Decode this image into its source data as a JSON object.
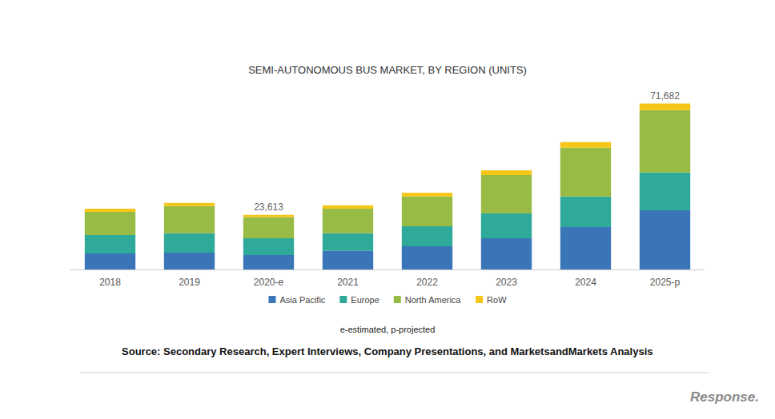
{
  "chart_data": {
    "type": "bar",
    "title": "SEMI-AUTONOMOUS BUS MARKET, BY REGION (UNITS)",
    "categories": [
      "2018",
      "2019",
      "2020-e",
      "2021",
      "2022",
      "2023",
      "2024",
      "2025-p"
    ],
    "series": [
      {
        "name": "Asia Pacific",
        "color": "#3a75b8",
        "values": [
          6900,
          7300,
          6200,
          8000,
          10000,
          13500,
          18300,
          25600
        ]
      },
      {
        "name": "Europe",
        "color": "#2ea99a",
        "values": [
          8000,
          8300,
          7300,
          7600,
          8700,
          10700,
          13200,
          16300
        ]
      },
      {
        "name": "North America",
        "color": "#98bb45",
        "values": [
          10000,
          11800,
          9100,
          10700,
          12800,
          16600,
          21100,
          27000
        ]
      },
      {
        "name": "RoW",
        "color": "#f5c518",
        "values": [
          1400,
          1400,
          1013,
          1400,
          1700,
          2100,
          2400,
          2782
        ]
      }
    ],
    "stacked": true,
    "ylim": [
      0,
      75000
    ],
    "tick_labels": "x",
    "grid": false,
    "legend": "bottom",
    "annotations": [
      {
        "x": "2020-e",
        "y": 23613,
        "text": "23,613"
      },
      {
        "x": "2025-p",
        "y": 71682,
        "text": "71,682"
      }
    ],
    "footnote": "e-estimated, p-projected",
    "source": "Source: Secondary Research, Expert Interviews, Company Presentations, and MarketsandMarkets Analysis",
    "watermark": "Response."
  }
}
